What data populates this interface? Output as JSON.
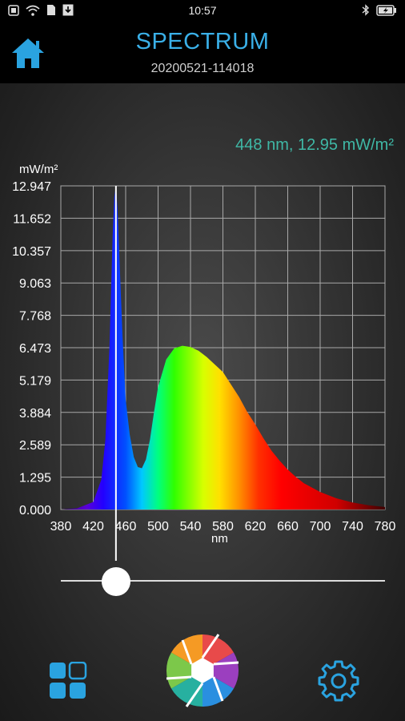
{
  "status_bar": {
    "time": "10:57"
  },
  "header": {
    "title": "SPECTRUM",
    "subtitle": "20200521-114018"
  },
  "readout": {
    "text": "448 nm, 12.95 mW/m²"
  },
  "chart_data": {
    "type": "area",
    "ylabel": "mW/m²",
    "xlabel": "nm",
    "x_ticks": [
      380,
      420,
      460,
      500,
      540,
      580,
      620,
      660,
      700,
      740,
      780
    ],
    "y_ticks": [
      "0.000",
      "1.295",
      "2.589",
      "3.884",
      "5.179",
      "6.473",
      "7.768",
      "9.063",
      "10.357",
      "11.652",
      "12.947"
    ],
    "xlim": [
      380,
      780
    ],
    "ylim": [
      0,
      12.947
    ],
    "grid": true,
    "cursor_x": 448,
    "series": [
      {
        "x": [
          380,
          400,
          420,
          430,
          435,
          440,
          444,
          446,
          448,
          450,
          453,
          456,
          460,
          465,
          470,
          475,
          480,
          485,
          490,
          495,
          500,
          510,
          520,
          530,
          540,
          550,
          560,
          570,
          580,
          590,
          600,
          610,
          620,
          630,
          640,
          650,
          660,
          670,
          680,
          700,
          720,
          740,
          760,
          780
        ],
        "values": [
          0.0,
          0.05,
          0.3,
          1.2,
          2.8,
          6.5,
          11.0,
          12.5,
          12.95,
          12.0,
          9.5,
          7.0,
          4.4,
          3.0,
          2.1,
          1.7,
          1.65,
          2.0,
          2.8,
          3.9,
          4.9,
          6.0,
          6.45,
          6.55,
          6.5,
          6.35,
          6.1,
          5.8,
          5.5,
          5.0,
          4.5,
          3.9,
          3.4,
          2.85,
          2.35,
          1.95,
          1.6,
          1.3,
          1.05,
          0.7,
          0.45,
          0.28,
          0.17,
          0.1
        ]
      }
    ]
  },
  "slider": {
    "value_nm": 448
  },
  "nav": {
    "icons": [
      "grid-icon",
      "camera-aperture-icon",
      "gear-icon"
    ]
  },
  "colors": {
    "accent": "#3ab0e8",
    "readout": "#3fb8a6"
  }
}
